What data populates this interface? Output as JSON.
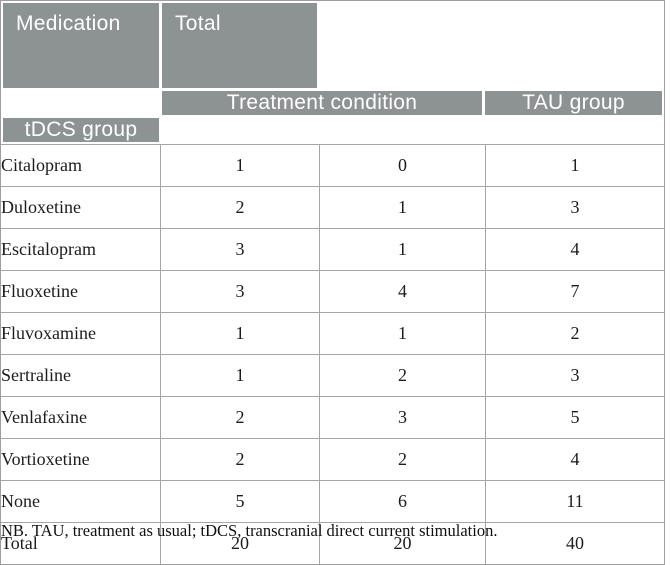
{
  "table": {
    "header": {
      "medication": "Medication",
      "treatment_condition": "Treatment condition",
      "total": "Total",
      "tau_group": "TAU group",
      "tdcs_group": "tDCS group"
    },
    "rows": [
      {
        "medication": "Citalopram",
        "tau": "1",
        "tdcs": "0",
        "total": "1"
      },
      {
        "medication": "Duloxetine",
        "tau": "2",
        "tdcs": "1",
        "total": "3"
      },
      {
        "medication": "Escitalopram",
        "tau": "3",
        "tdcs": "1",
        "total": "4"
      },
      {
        "medication": "Fluoxetine",
        "tau": "3",
        "tdcs": "4",
        "total": "7"
      },
      {
        "medication": "Fluvoxamine",
        "tau": "1",
        "tdcs": "1",
        "total": "2"
      },
      {
        "medication": "Sertraline",
        "tau": "1",
        "tdcs": "2",
        "total": "3"
      },
      {
        "medication": "Venlafaxine",
        "tau": "2",
        "tdcs": "3",
        "total": "5"
      },
      {
        "medication": "Vortioxetine",
        "tau": "2",
        "tdcs": "2",
        "total": "4"
      },
      {
        "medication": "None",
        "tau": "5",
        "tdcs": "6",
        "total": "11"
      },
      {
        "medication": "Total",
        "tau": "20",
        "tdcs": "20",
        "total": "40"
      }
    ]
  },
  "note": "NB. TAU, treatment as usual; tDCS, transcranial direct current stimulation.",
  "colors": {
    "header_bg": "#8d9292",
    "header_text": "#ffffff",
    "cell_border": "#a6a6a6",
    "frame_border": "#9e9e9e"
  }
}
